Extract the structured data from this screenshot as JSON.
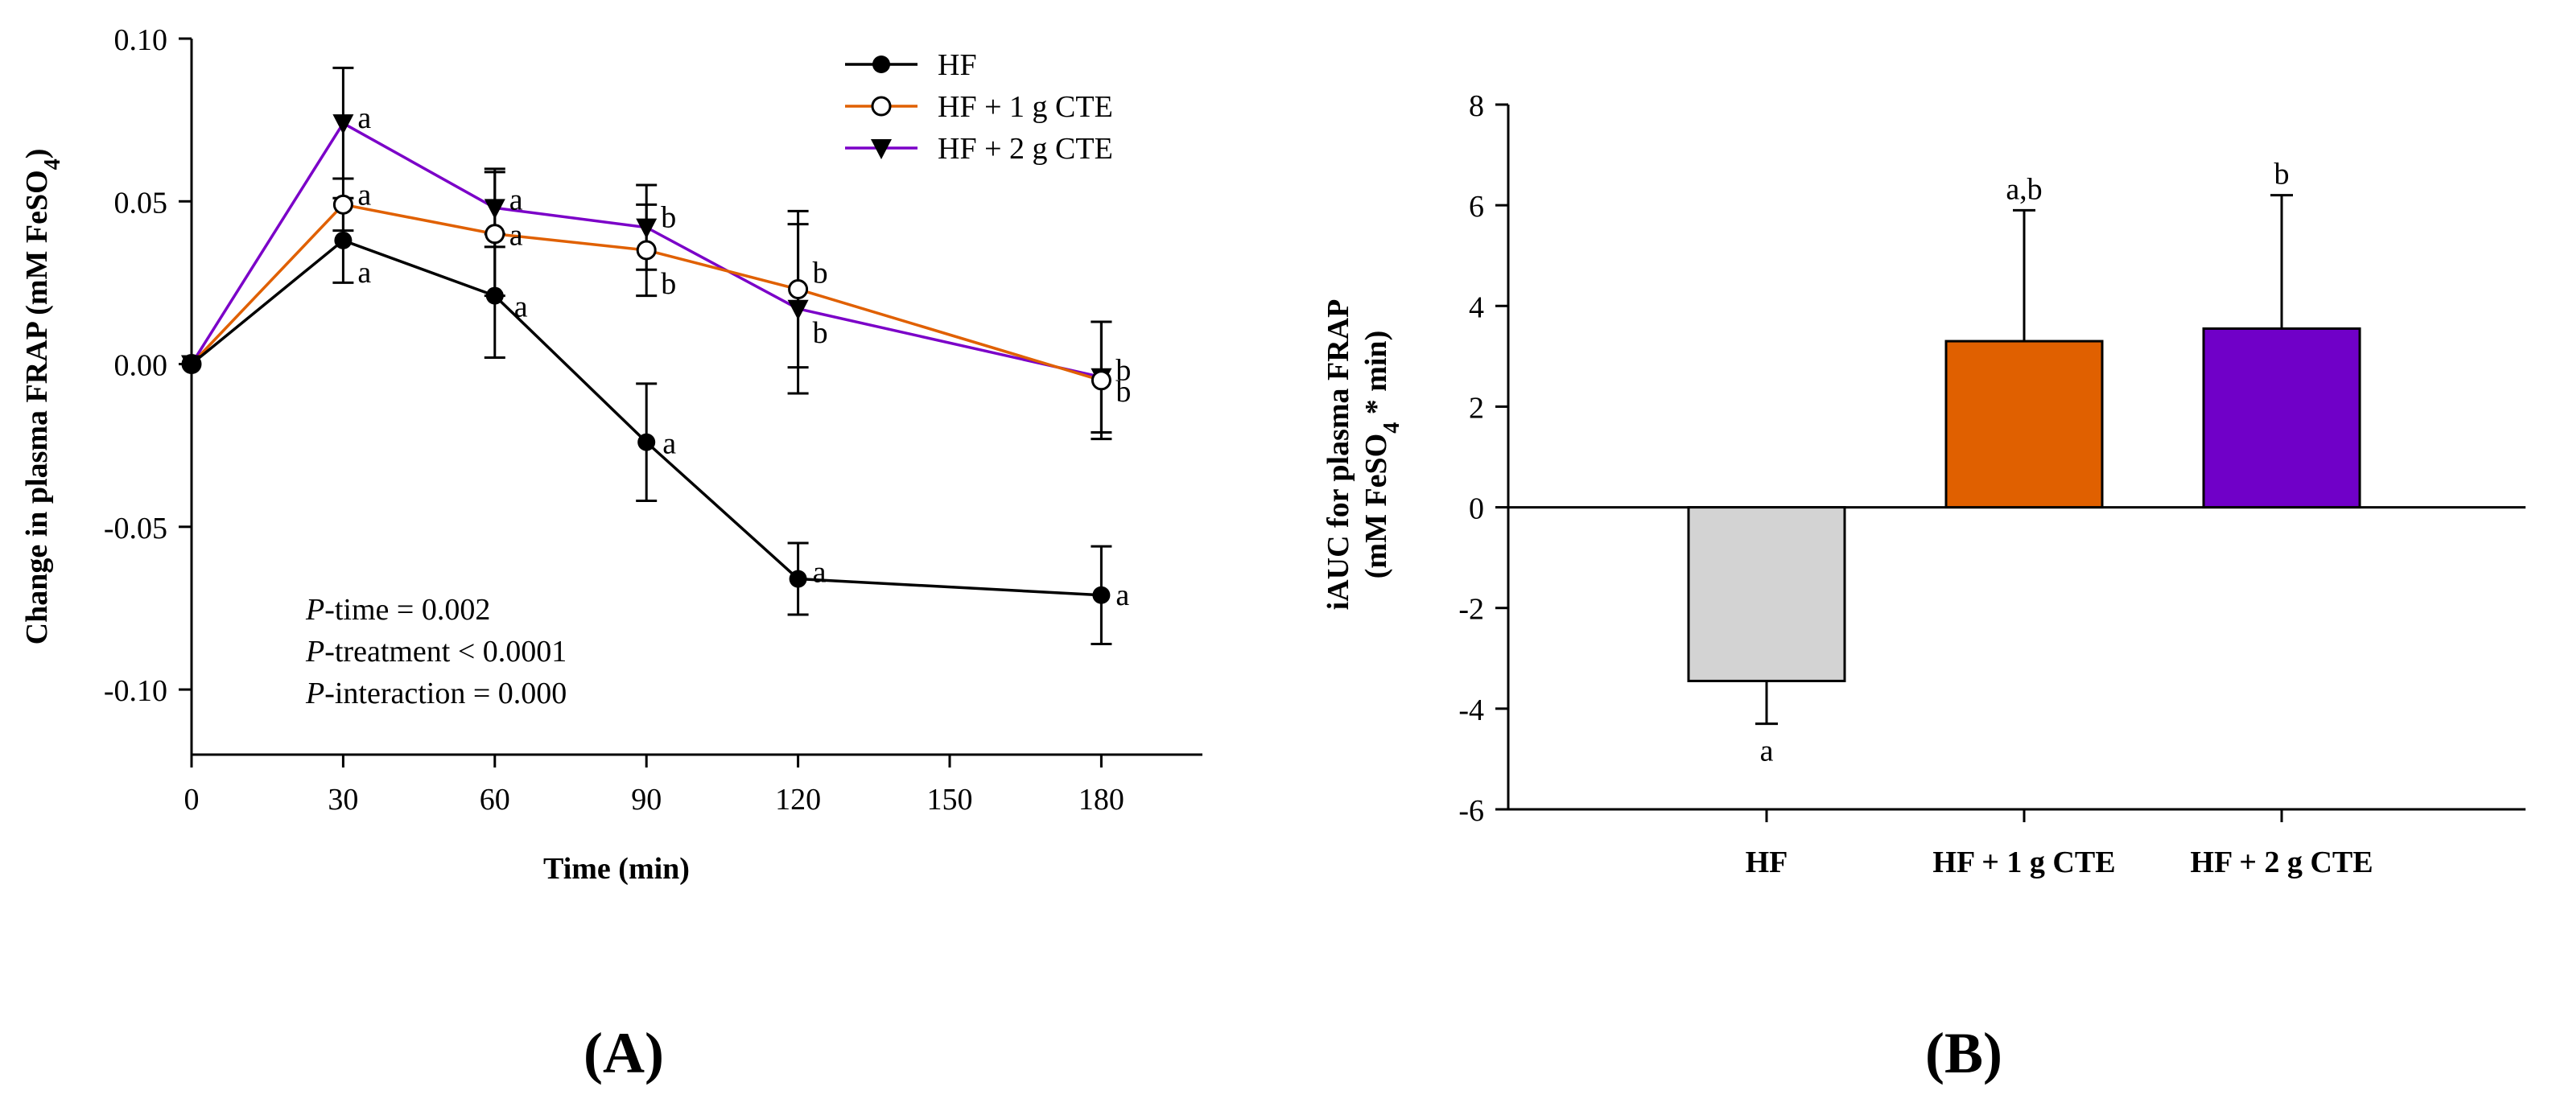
{
  "panels": {
    "a_label": "A",
    "b_label": "B"
  },
  "chart_data": [
    {
      "type": "line",
      "panel": "A",
      "xlabel": "Time (min)",
      "ylabel": "Change in plasma FRAP (mM FeSO4)",
      "ylabel_main": "Change in plasma FRAP (mM FeSO",
      "ylabel_sub": "4",
      "ylabel_close": ")",
      "xlim": [
        0,
        200
      ],
      "ylim": [
        -0.12,
        0.1
      ],
      "xticks": [
        0,
        30,
        60,
        90,
        120,
        150,
        180
      ],
      "xtick_labels": [
        "0",
        "30",
        "60",
        "90",
        "120",
        "150",
        "180"
      ],
      "yticks": [
        -0.1,
        -0.05,
        0,
        0.05,
        0.1
      ],
      "ytick_labels": [
        "-0.10",
        "-0.05",
        "0.00",
        "0.05",
        "0.10"
      ],
      "series": [
        {
          "name": "HF",
          "color": "#000000",
          "marker": "filled-circle",
          "x": [
            0,
            30,
            60,
            90,
            120,
            180
          ],
          "y": [
            0,
            0.038,
            0.021,
            -0.024,
            -0.066,
            -0.071
          ],
          "err": [
            0,
            0.013,
            0.019,
            0.018,
            0.011,
            0.015
          ],
          "labels": [
            "",
            "a",
            "a",
            "a",
            "a",
            "a"
          ]
        },
        {
          "name": "HF + 1 g CTE",
          "color": "#e06000",
          "marker": "open-circle",
          "x": [
            0,
            30,
            60,
            90,
            120,
            180
          ],
          "y": [
            0,
            0.049,
            0.04,
            0.035,
            0.023,
            -0.005
          ],
          "err": [
            0,
            0.008,
            0.019,
            0.014,
            0.024,
            0.018
          ],
          "labels": [
            "",
            "a",
            "a",
            "b",
            "b",
            "b"
          ]
        },
        {
          "name": "HF + 2 g CTE",
          "color": "#7b00c8",
          "marker": "triangle-down",
          "x": [
            0,
            30,
            60,
            90,
            120,
            180
          ],
          "y": [
            0,
            0.074,
            0.048,
            0.042,
            0.017,
            -0.004
          ],
          "err": [
            0,
            0.017,
            0.012,
            0.013,
            0.026,
            0.017
          ],
          "labels": [
            "",
            "a",
            "a",
            "b",
            "b",
            "b"
          ]
        }
      ],
      "annotations": [
        {
          "p": "P",
          "rest": "-time = 0.002"
        },
        {
          "p": "P",
          "rest": "-treatment < 0.0001"
        },
        {
          "p": "P",
          "rest": "-interaction = 0.000"
        }
      ]
    },
    {
      "type": "bar",
      "panel": "B",
      "ylabel": "iAUC for plasma FRAP (mM FeSO4 * min)",
      "ylabel_line1": "iAUC for plasma FRAP",
      "ylabel_line2_main": "(mM FeSO",
      "ylabel_line2_sub": "4",
      "ylabel_line2_close": " * min)",
      "ylim": [
        -6,
        8
      ],
      "yticks": [
        -6,
        -4,
        -2,
        0,
        2,
        4,
        6,
        8
      ],
      "ytick_labels": [
        "-6",
        "-4",
        "-2",
        "0",
        "2",
        "4",
        "6",
        "8"
      ],
      "categories": [
        "HF",
        "HF + 1 g CTE",
        "HF + 2 g CTE"
      ],
      "values": [
        -3.45,
        3.3,
        3.55
      ],
      "err": [
        0.85,
        2.6,
        2.65
      ],
      "colors": [
        "#d3d3d3",
        "#e06000",
        "#7000c8"
      ],
      "labels": [
        "a",
        "a,b",
        "b"
      ]
    }
  ]
}
